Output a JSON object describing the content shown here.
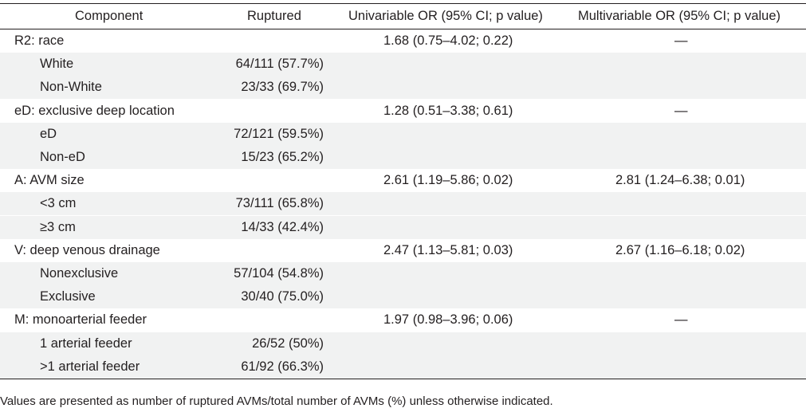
{
  "header": {
    "component": "Component",
    "ruptured": "Ruptured",
    "univariable": "Univariable OR (95% CI; p value)",
    "multivariable": "Multivariable OR (95% CI; p value)"
  },
  "rows": [
    {
      "type": "group",
      "component": "R2: race",
      "ruptured": "",
      "univariable": "1.68 (0.75–4.02; 0.22)",
      "multivariable": "—"
    },
    {
      "type": "sub",
      "component": "White",
      "ruptured": "64/111 (57.7%)",
      "univariable": "",
      "multivariable": ""
    },
    {
      "type": "sub",
      "component": "Non-White",
      "ruptured": "23/33 (69.7%)",
      "univariable": "",
      "multivariable": ""
    },
    {
      "type": "group",
      "component": "eD: exclusive deep location",
      "ruptured": "",
      "univariable": "1.28 (0.51–3.38; 0.61)",
      "multivariable": "—"
    },
    {
      "type": "sub",
      "component": "eD",
      "ruptured": "72/121 (59.5%)",
      "univariable": "",
      "multivariable": ""
    },
    {
      "type": "sub",
      "component": "Non-eD",
      "ruptured": "15/23 (65.2%)",
      "univariable": "",
      "multivariable": ""
    },
    {
      "type": "group",
      "component": "A: AVM size",
      "ruptured": "",
      "univariable": "2.61 (1.19–5.86; 0.02)",
      "multivariable": "2.81 (1.24–6.38; 0.01)"
    },
    {
      "type": "sub",
      "component": "<3 cm",
      "ruptured": "73/111 (65.8%)",
      "univariable": "",
      "multivariable": ""
    },
    {
      "type": "sub",
      "component": "≥3 cm",
      "ruptured": "14/33 (42.4%)",
      "univariable": "",
      "multivariable": ""
    },
    {
      "type": "group",
      "component": "V: deep venous drainage",
      "ruptured": "",
      "univariable": "2.47 (1.13–5.81; 0.03)",
      "multivariable": "2.67 (1.16–6.18; 0.02)"
    },
    {
      "type": "sub",
      "component": "Nonexclusive",
      "ruptured": "57/104 (54.8%)",
      "univariable": "",
      "multivariable": ""
    },
    {
      "type": "sub",
      "component": "Exclusive",
      "ruptured": "30/40 (75.0%)",
      "univariable": "",
      "multivariable": ""
    },
    {
      "type": "group",
      "component": "M: monoarterial feeder",
      "ruptured": "",
      "univariable": "1.97 (0.98–3.96; 0.06)",
      "multivariable": "—"
    },
    {
      "type": "sub",
      "component": "1 arterial feeder",
      "ruptured": "26/52 (50%)",
      "univariable": "",
      "multivariable": ""
    },
    {
      "type": "sub",
      "component": ">1 arterial feeder",
      "ruptured": "61/92 (66.3%)",
      "univariable": "",
      "multivariable": ""
    }
  ],
  "footnote": "Values are presented as number of ruptured AVMs/total number of AVMs (%) unless otherwise indicated."
}
